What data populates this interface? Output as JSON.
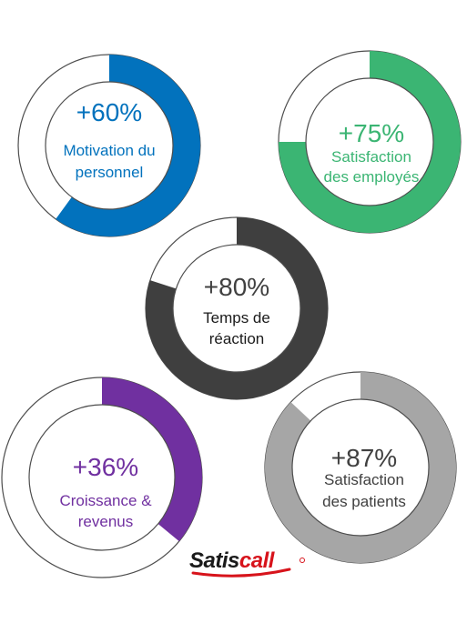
{
  "chart_data": [
    {
      "type": "donut",
      "value_label": "+60%",
      "line1": "Motivation du",
      "line2": "personnel",
      "fraction": 0.6,
      "color": "#0272bd"
    },
    {
      "type": "donut",
      "value_label": "+75%",
      "line1": "Satisfaction",
      "line2": "des employés",
      "fraction": 0.75,
      "color": "#3bb573"
    },
    {
      "type": "donut",
      "value_label": "+80%",
      "line1": "Temps de",
      "line2": "réaction",
      "fraction": 0.8,
      "color": "#3f3f3f"
    },
    {
      "type": "donut",
      "value_label": "+36%",
      "line1": "Croissance &",
      "line2": "revenus",
      "fraction": 0.36,
      "color": "#7030a0"
    },
    {
      "type": "donut",
      "value_label": "+87%",
      "line1": "Satisfaction",
      "line2": "des patients",
      "fraction": 0.87,
      "color": "#a6a6a6"
    }
  ],
  "logo": {
    "text_part1": "Satis",
    "text_part2": "call",
    "color_part1": "#1a1a1a",
    "color_part2": "#d7131b"
  },
  "colors": {
    "ring_outline": "#4d4d4d",
    "value_text": "#404040",
    "label_text": "#1a1a1a"
  }
}
